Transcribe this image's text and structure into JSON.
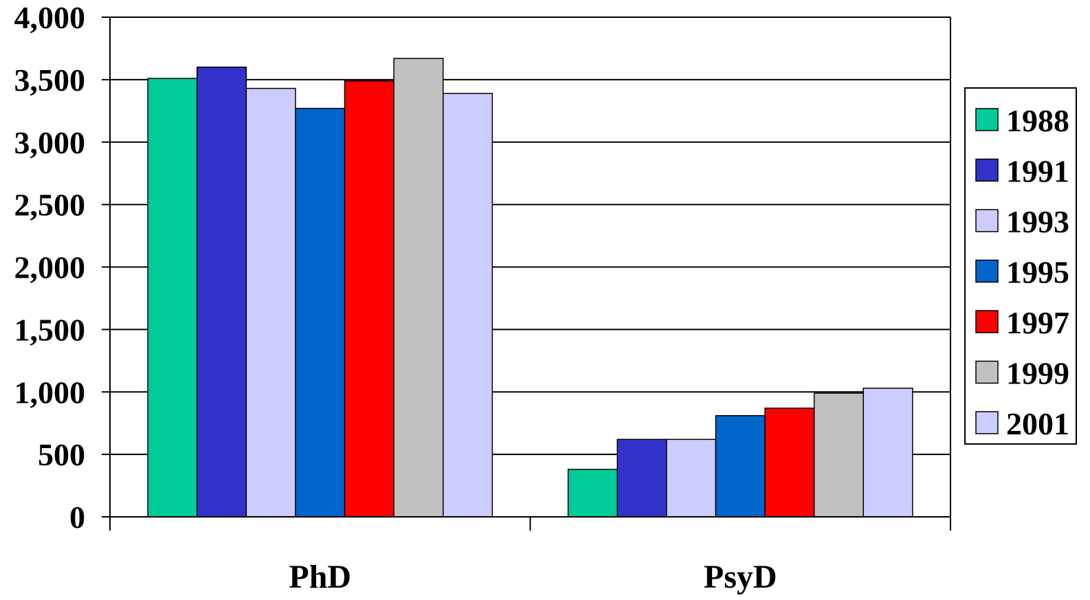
{
  "chart_data": {
    "type": "bar",
    "categories": [
      "PhD",
      "PsyD"
    ],
    "series": [
      {
        "name": "1988",
        "color": "#00CC99",
        "values": [
          3510,
          380
        ]
      },
      {
        "name": "1991",
        "color": "#3333CC",
        "values": [
          3600,
          620
        ]
      },
      {
        "name": "1993",
        "color": "#CCCCFF",
        "values": [
          3430,
          620
        ]
      },
      {
        "name": "1995",
        "color": "#0066CC",
        "values": [
          3270,
          810
        ]
      },
      {
        "name": "1997",
        "color": "#FF0000",
        "values": [
          3490,
          870
        ]
      },
      {
        "name": "1999",
        "color": "#C0C0C0",
        "values": [
          3670,
          990
        ]
      },
      {
        "name": "2001",
        "color": "#CCCCFF",
        "values": [
          3390,
          1030
        ]
      }
    ],
    "y_ticks": [
      "0",
      "500",
      "1,000",
      "1,500",
      "2,000",
      "2,500",
      "3,000",
      "3,500",
      "4,000"
    ],
    "ylim": [
      0,
      4000
    ],
    "grid": true,
    "legend_position": "right"
  }
}
